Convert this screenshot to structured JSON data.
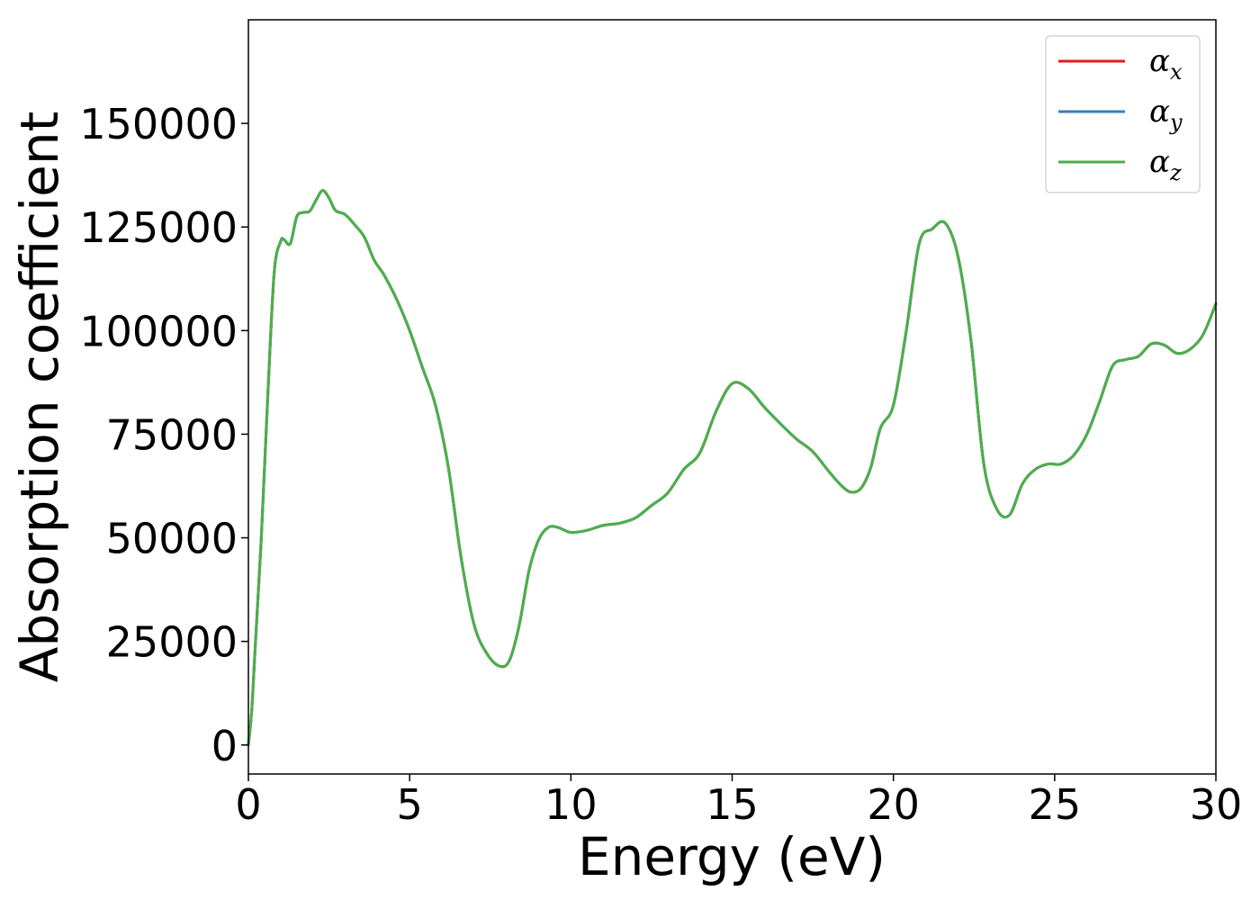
{
  "chart_data": {
    "type": "line",
    "title": "",
    "xlabel": "Energy (eV)",
    "ylabel": "Absorption coefficient",
    "xlim": [
      0,
      30
    ],
    "ylim": [
      -7000,
      175000
    ],
    "x_ticks": [
      0,
      5,
      10,
      15,
      20,
      25,
      30
    ],
    "x_tick_labels": [
      "0",
      "5",
      "10",
      "15",
      "20",
      "25",
      "30"
    ],
    "y_ticks": [
      0,
      25000,
      50000,
      75000,
      100000,
      125000,
      150000
    ],
    "y_tick_labels": [
      "0",
      "25000",
      "50000",
      "75000",
      "100000",
      "125000",
      "150000"
    ],
    "grid": false,
    "legend_position": "top-right",
    "colors": {
      "alpha_x": "#e41a1c",
      "alpha_y": "#377eb8",
      "alpha_z": "#4daf4a"
    },
    "x": [
      0,
      0.1,
      0.2,
      0.4,
      0.6,
      0.8,
      1.0,
      1.1,
      1.3,
      1.5,
      1.7,
      1.9,
      2.1,
      2.3,
      2.5,
      2.7,
      3.0,
      3.3,
      3.6,
      3.9,
      4.2,
      4.6,
      5.0,
      5.4,
      5.8,
      6.2,
      6.6,
      7.0,
      7.4,
      7.8,
      8.1,
      8.4,
      8.7,
      9.0,
      9.3,
      9.6,
      10.0,
      10.5,
      11.0,
      11.5,
      12.0,
      12.5,
      13.0,
      13.5,
      14.0,
      14.5,
      15.0,
      15.5,
      16.0,
      16.5,
      17.0,
      17.5,
      18.0,
      18.4,
      18.7,
      19.0,
      19.3,
      19.6,
      20.0,
      20.4,
      20.8,
      21.2,
      21.6,
      22.0,
      22.4,
      22.8,
      23.2,
      23.6,
      24.0,
      24.4,
      24.8,
      25.2,
      25.6,
      26.0,
      26.4,
      26.8,
      27.2,
      27.6,
      28.0,
      28.4,
      28.8,
      29.2,
      29.6,
      30.0
    ],
    "series": [
      {
        "name": "α_x",
        "color": "#e41a1c",
        "values": [
          0,
          8000,
          22000,
          50000,
          84000,
          114000,
          121500,
          122000,
          121000,
          127500,
          128500,
          128800,
          131500,
          133800,
          132000,
          129000,
          128000,
          125500,
          122500,
          117000,
          113500,
          107500,
          100000,
          91000,
          82000,
          67000,
          45000,
          29000,
          22000,
          19000,
          20500,
          29000,
          42000,
          49500,
          52500,
          52500,
          51300,
          51800,
          53000,
          53500,
          54800,
          57800,
          60800,
          66500,
          70500,
          80500,
          87200,
          86000,
          81500,
          77500,
          73800,
          70800,
          66000,
          62500,
          61000,
          62000,
          67000,
          76500,
          82000,
          100000,
          121000,
          124500,
          126000,
          118000,
          98000,
          68000,
          57000,
          55500,
          63000,
          66500,
          67800,
          67800,
          70000,
          75000,
          83000,
          91500,
          93000,
          93800,
          96800,
          96500,
          94500,
          95500,
          99000,
          106500
        ]
      },
      {
        "name": "α_y",
        "color": "#377eb8",
        "values": [
          0,
          8000,
          22000,
          50000,
          84000,
          114000,
          121500,
          122000,
          121000,
          127500,
          128500,
          128800,
          131500,
          133800,
          132000,
          129000,
          128000,
          125500,
          122500,
          117000,
          113500,
          107500,
          100000,
          91000,
          82000,
          67000,
          45000,
          29000,
          22000,
          19000,
          20500,
          29000,
          42000,
          49500,
          52500,
          52500,
          51300,
          51800,
          53000,
          53500,
          54800,
          57800,
          60800,
          66500,
          70500,
          80500,
          87200,
          86000,
          81500,
          77500,
          73800,
          70800,
          66000,
          62500,
          61000,
          62000,
          67000,
          76500,
          82000,
          100000,
          121000,
          124500,
          126000,
          118000,
          98000,
          68000,
          57000,
          55500,
          63000,
          66500,
          67800,
          67800,
          70000,
          75000,
          83000,
          91500,
          93000,
          93800,
          96800,
          96500,
          94500,
          95500,
          99000,
          106500
        ]
      },
      {
        "name": "α_z",
        "color": "#4daf4a",
        "values": [
          0,
          8000,
          22000,
          50000,
          84000,
          114000,
          121500,
          122000,
          121000,
          127500,
          128500,
          128800,
          131500,
          133800,
          132000,
          129000,
          128000,
          125500,
          122500,
          117000,
          113500,
          107500,
          100000,
          91000,
          82000,
          67000,
          45000,
          29000,
          22000,
          19000,
          20500,
          29000,
          42000,
          49500,
          52500,
          52500,
          51300,
          51800,
          53000,
          53500,
          54800,
          57800,
          60800,
          66500,
          70500,
          80500,
          87200,
          86000,
          81500,
          77500,
          73800,
          70800,
          66000,
          62500,
          61000,
          62000,
          67000,
          76500,
          82000,
          100000,
          121000,
          124500,
          126000,
          118000,
          98000,
          68000,
          57000,
          55500,
          63000,
          66500,
          67800,
          67800,
          70000,
          75000,
          83000,
          91500,
          93000,
          93800,
          96800,
          96500,
          94500,
          95500,
          99000,
          106500
        ]
      }
    ],
    "legend": [
      {
        "symbol": "α",
        "sub": "x"
      },
      {
        "symbol": "α",
        "sub": "y"
      },
      {
        "symbol": "α",
        "sub": "z"
      }
    ]
  }
}
